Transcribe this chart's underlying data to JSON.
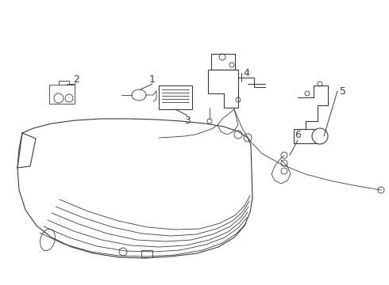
{
  "bg_color": "#ffffff",
  "line_color": "#3a3a3a",
  "label_color": "#000000",
  "fig_width": 4.9,
  "fig_height": 3.6,
  "dpi": 100,
  "label_fontsize": 9
}
